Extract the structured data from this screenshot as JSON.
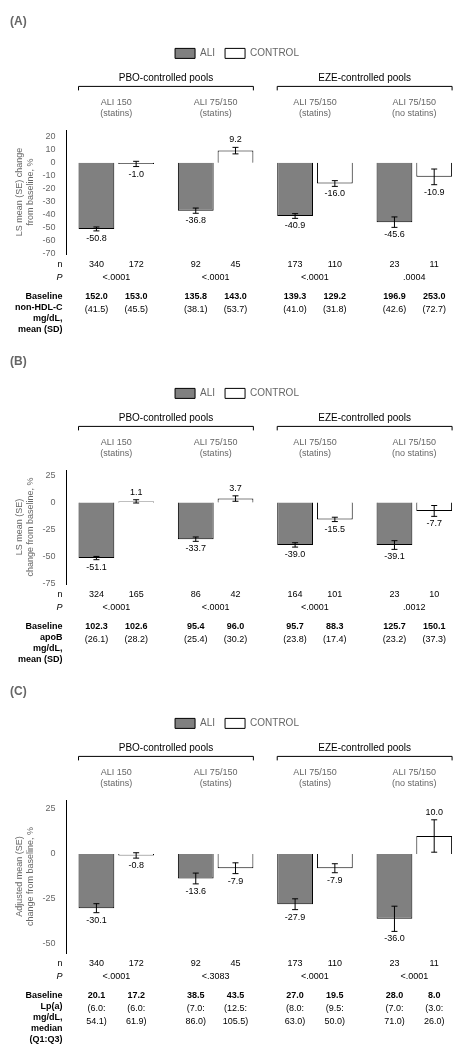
{
  "chart_data": [
    {
      "type": "bar",
      "title": "(A)",
      "ylabel": "LS mean (SE) change\nfrom baseline, %",
      "categories": [
        "ALI 150\n(statins)",
        "ALI 75/150\n(statins)",
        "ALI 75/150\n(statins)",
        "ALI 75/150\n(no statins)"
      ],
      "groups": [
        {
          "label": "PBO-controlled pools",
          "count": 2
        },
        {
          "label": "EZE-controlled pools",
          "count": 2
        }
      ],
      "series": [
        {
          "name": "ALI",
          "color": "#808080",
          "values": [
            -50.8,
            -36.8,
            -40.9,
            -45.6
          ],
          "value_labels": [
            "-50.8",
            "-36.8",
            "-40.9",
            "-45.6"
          ],
          "errors": [
            1.5,
            2.0,
            1.8,
            4.0
          ],
          "n": [
            340,
            92,
            173,
            23
          ],
          "baseline": [
            [
              "152.0",
              "(41.5)"
            ],
            [
              "135.8",
              "(38.1)"
            ],
            [
              "139.3",
              "(41.0)"
            ],
            [
              "196.9",
              "(42.6)"
            ]
          ]
        },
        {
          "name": "CONTROL",
          "color": "#ffffff",
          "values": [
            -1.0,
            9.2,
            -16.0,
            -10.9
          ],
          "value_labels": [
            "-1.0",
            "9.2",
            "-16.0",
            "-10.9"
          ],
          "errors": [
            2.0,
            2.5,
            2.2,
            6.0
          ],
          "n": [
            172,
            45,
            110,
            11
          ],
          "baseline": [
            [
              "153.0",
              "(45.5)"
            ],
            [
              "143.0",
              "(53.7)"
            ],
            [
              "129.2",
              "(31.8)"
            ],
            [
              "253.0",
              "(72.7)"
            ]
          ]
        }
      ],
      "n_label": "n",
      "p_label": "P",
      "p_values": [
        "<.0001",
        "<.0001",
        "<.0001",
        ".0004"
      ],
      "baseline_label": "Baseline\nnon-HDL-C\nmg/dL,\nmean (SD)",
      "ylim": [
        -70,
        25
      ],
      "yticks": [
        -70,
        -60,
        -50,
        -40,
        -30,
        -20,
        -10,
        0,
        10,
        20
      ],
      "grid": false,
      "legend": "top",
      "data_labels": true
    },
    {
      "type": "bar",
      "title": "(B)",
      "ylabel": "LS mean (SE)\nchange from baseline, %",
      "categories": [
        "ALI 150\n(statins)",
        "ALI 75/150\n(statins)",
        "ALI 75/150\n(statins)",
        "ALI 75/150\n(no statins)"
      ],
      "groups": [
        {
          "label": "PBO-controlled pools",
          "count": 2
        },
        {
          "label": "EZE-controlled pools",
          "count": 2
        }
      ],
      "series": [
        {
          "name": "ALI",
          "color": "#808080",
          "values": [
            -51.1,
            -33.7,
            -39.0,
            -39.1
          ],
          "value_labels": [
            "-51.1",
            "-33.7",
            "-39.0",
            "-39.1"
          ],
          "errors": [
            1.5,
            2.0,
            2.0,
            4.0
          ],
          "n": [
            324,
            86,
            164,
            23
          ],
          "baseline": [
            [
              "102.3",
              "(26.1)"
            ],
            [
              "95.4",
              "(25.4)"
            ],
            [
              "95.7",
              "(23.8)"
            ],
            [
              "125.7",
              "(23.2)"
            ]
          ]
        },
        {
          "name": "CONTROL",
          "color": "#ffffff",
          "values": [
            1.1,
            3.7,
            -15.5,
            -7.7
          ],
          "value_labels": [
            "1.1",
            "3.7",
            "-15.5",
            "-7.7"
          ],
          "errors": [
            1.5,
            2.5,
            2.0,
            5.0
          ],
          "n": [
            165,
            42,
            101,
            10
          ],
          "baseline": [
            [
              "102.6",
              "(28.2)"
            ],
            [
              "96.0",
              "(30.2)"
            ],
            [
              "88.3",
              "(17.4)"
            ],
            [
              "150.1",
              "(37.3)"
            ]
          ]
        }
      ],
      "n_label": "n",
      "p_label": "P",
      "p_values": [
        "<.0001",
        "<.0001",
        "<.0001",
        ".0012"
      ],
      "baseline_label": "Baseline\napoB\nmg/dL,\nmean (SD)",
      "ylim": [
        -75,
        30
      ],
      "yticks": [
        -75,
        -50,
        -25,
        0,
        25
      ],
      "grid": false,
      "legend": "top",
      "data_labels": true
    },
    {
      "type": "bar",
      "title": "(C)",
      "ylabel": "Adjusted mean (SE)\nchange from baseline, %",
      "categories": [
        "ALI 150\n(statins)",
        "ALI 75/150\n(statins)",
        "ALI 75/150\n(statins)",
        "ALI 75/150\n(no statins)"
      ],
      "groups": [
        {
          "label": "PBO-controlled pools",
          "count": 2
        },
        {
          "label": "EZE-controlled pools",
          "count": 2
        }
      ],
      "series": [
        {
          "name": "ALI",
          "color": "#808080",
          "values": [
            -30.1,
            -13.6,
            -27.9,
            -36.0
          ],
          "value_labels": [
            "-30.1",
            "-13.6",
            "-27.9",
            "-36.0"
          ],
          "errors": [
            2.5,
            3.0,
            3.0,
            7.0
          ],
          "n": [
            340,
            92,
            173,
            23
          ],
          "baseline": [
            [
              "20.1",
              "(6.0:",
              "54.1)"
            ],
            [
              "38.5",
              "(7.0:",
              "86.0)"
            ],
            [
              "27.0",
              "(8.0:",
              "63.0)"
            ],
            [
              "28.0",
              "(7.0:",
              "71.0)"
            ]
          ]
        },
        {
          "name": "CONTROL",
          "color": "#ffffff",
          "values": [
            -0.8,
            -7.9,
            -7.9,
            10.0
          ],
          "value_labels": [
            "-0.8",
            "-7.9",
            "-7.9",
            "10.0"
          ],
          "errors": [
            1.5,
            3.0,
            2.5,
            9.0
          ],
          "n": [
            172,
            45,
            110,
            11
          ],
          "baseline": [
            [
              "17.2",
              "(6.0:",
              "61.9)"
            ],
            [
              "43.5",
              "(12.5:",
              "105.5)"
            ],
            [
              "19.5",
              "(9.5:",
              "50.0)"
            ],
            [
              "8.0",
              "(3.0:",
              "26.0)"
            ]
          ]
        }
      ],
      "n_label": "n",
      "p_label": "P",
      "p_values": [
        "<.0001",
        "<.3083",
        "<.0001",
        "<.0001"
      ],
      "baseline_label": "Baseline\nLp(a)\nmg/dL,\nmedian\n(Q1:Q3)",
      "ylim": [
        -55,
        30
      ],
      "yticks": [
        -50,
        -25,
        0,
        25
      ],
      "grid": false,
      "legend": "top",
      "data_labels": true
    }
  ]
}
